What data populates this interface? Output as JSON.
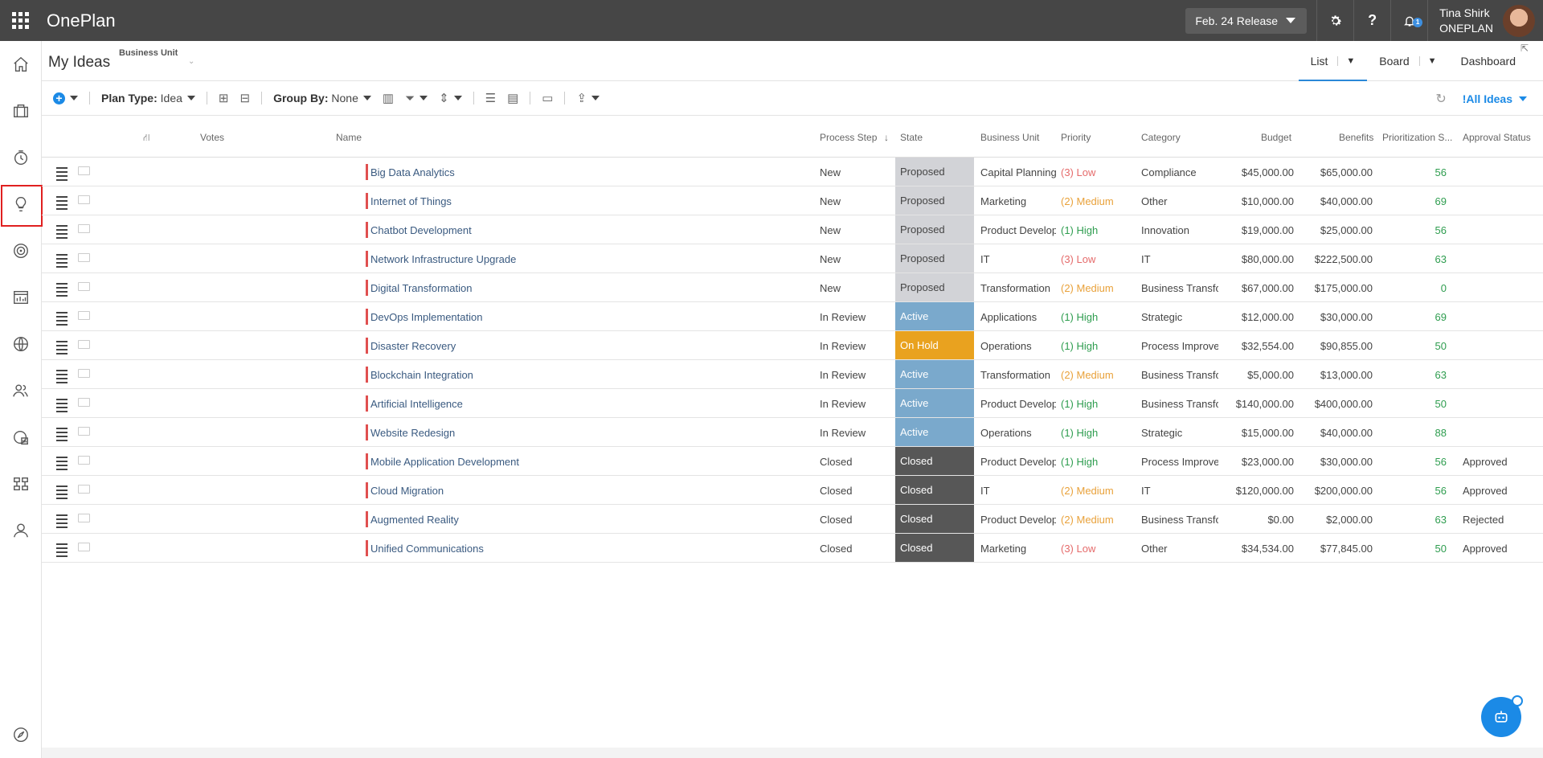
{
  "app": {
    "name": "OnePlan",
    "release_label": "Feb. 24 Release",
    "notification_count": "1",
    "user_name": "Tina Shirk",
    "user_org": "ONEPLAN"
  },
  "rail": [
    "home-icon",
    "briefcase-icon",
    "clock-icon",
    "lightbulb-icon",
    "target-icon",
    "report-icon",
    "globe-icon",
    "people-icon",
    "financial-icon",
    "hierarchy-icon",
    "user-icon",
    "compass-icon"
  ],
  "header": {
    "title": "My Ideas",
    "bu_filter": "Business Unit",
    "tabs": {
      "list": "List",
      "board": "Board",
      "dashboard": "Dashboard"
    }
  },
  "toolbar": {
    "plan_type_label": "Plan Type:",
    "plan_type_value": "Idea",
    "group_by_label": "Group By:",
    "group_by_value": "None",
    "view_name": "!All Ideas"
  },
  "columns": {
    "votes": "Votes",
    "name": "Name",
    "process_step": "Process Step",
    "state": "State",
    "business_unit": "Business Unit",
    "priority": "Priority",
    "category": "Category",
    "budget": "Budget",
    "benefits": "Benefits",
    "score": "Prioritization S...",
    "approval": "Approval Status"
  },
  "colors": {
    "Proposed": "#d2d3d7",
    "Active": "#7aa9cc",
    "On Hold": "#e9a21f",
    "Closed": "#575757"
  },
  "rows": [
    {
      "name": "Big Data Analytics",
      "step": "New",
      "state": "Proposed",
      "bu": "Capital Planning",
      "priority": "(3) Low",
      "category": "Compliance",
      "budget": "$45,000.00",
      "benefits": "$65,000.00",
      "score": "56",
      "approval": ""
    },
    {
      "name": "Internet of Things",
      "step": "New",
      "state": "Proposed",
      "bu": "Marketing",
      "priority": "(2) Medium",
      "category": "Other",
      "budget": "$10,000.00",
      "benefits": "$40,000.00",
      "score": "69",
      "approval": ""
    },
    {
      "name": "Chatbot Development",
      "step": "New",
      "state": "Proposed",
      "bu": "Product Develop",
      "priority": "(1) High",
      "category": "Innovation",
      "budget": "$19,000.00",
      "benefits": "$25,000.00",
      "score": "56",
      "approval": ""
    },
    {
      "name": "Network Infrastructure Upgrade",
      "step": "New",
      "state": "Proposed",
      "bu": "IT",
      "priority": "(3) Low",
      "category": "IT",
      "budget": "$80,000.00",
      "benefits": "$222,500.00",
      "score": "63",
      "approval": ""
    },
    {
      "name": "Digital Transformation",
      "step": "New",
      "state": "Proposed",
      "bu": "Transformation",
      "priority": "(2) Medium",
      "category": "Business Transfo",
      "budget": "$67,000.00",
      "benefits": "$175,000.00",
      "score": "0",
      "approval": ""
    },
    {
      "name": "DevOps Implementation",
      "step": "In Review",
      "state": "Active",
      "bu": "Applications",
      "priority": "(1) High",
      "category": "Strategic",
      "budget": "$12,000.00",
      "benefits": "$30,000.00",
      "score": "69",
      "approval": ""
    },
    {
      "name": "Disaster Recovery",
      "step": "In Review",
      "state": "On Hold",
      "bu": "Operations",
      "priority": "(1) High",
      "category": "Process Improve",
      "budget": "$32,554.00",
      "benefits": "$90,855.00",
      "score": "50",
      "approval": ""
    },
    {
      "name": "Blockchain Integration",
      "step": "In Review",
      "state": "Active",
      "bu": "Transformation",
      "priority": "(2) Medium",
      "category": "Business Transfo",
      "budget": "$5,000.00",
      "benefits": "$13,000.00",
      "score": "63",
      "approval": ""
    },
    {
      "name": "Artificial Intelligence",
      "step": "In Review",
      "state": "Active",
      "bu": "Product Develop",
      "priority": "(1) High",
      "category": "Business Transfo",
      "budget": "$140,000.00",
      "benefits": "$400,000.00",
      "score": "50",
      "approval": ""
    },
    {
      "name": "Website Redesign",
      "step": "In Review",
      "state": "Active",
      "bu": "Operations",
      "priority": "(1) High",
      "category": "Strategic",
      "budget": "$15,000.00",
      "benefits": "$40,000.00",
      "score": "88",
      "approval": ""
    },
    {
      "name": "Mobile Application Development",
      "step": "Closed",
      "state": "Closed",
      "bu": "Product Develop",
      "priority": "(1) High",
      "category": "Process Improve",
      "budget": "$23,000.00",
      "benefits": "$30,000.00",
      "score": "56",
      "approval": "Approved"
    },
    {
      "name": "Cloud Migration",
      "step": "Closed",
      "state": "Closed",
      "bu": "IT",
      "priority": "(2) Medium",
      "category": "IT",
      "budget": "$120,000.00",
      "benefits": "$200,000.00",
      "score": "56",
      "approval": "Approved"
    },
    {
      "name": "Augmented Reality",
      "step": "Closed",
      "state": "Closed",
      "bu": "Product Develop",
      "priority": "(2) Medium",
      "category": "Business Transfo",
      "budget": "$0.00",
      "benefits": "$2,000.00",
      "score": "63",
      "approval": "Rejected"
    },
    {
      "name": "Unified Communications",
      "step": "Closed",
      "state": "Closed",
      "bu": "Marketing",
      "priority": "(3) Low",
      "category": "Other",
      "budget": "$34,534.00",
      "benefits": "$77,845.00",
      "score": "50",
      "approval": "Approved"
    }
  ]
}
